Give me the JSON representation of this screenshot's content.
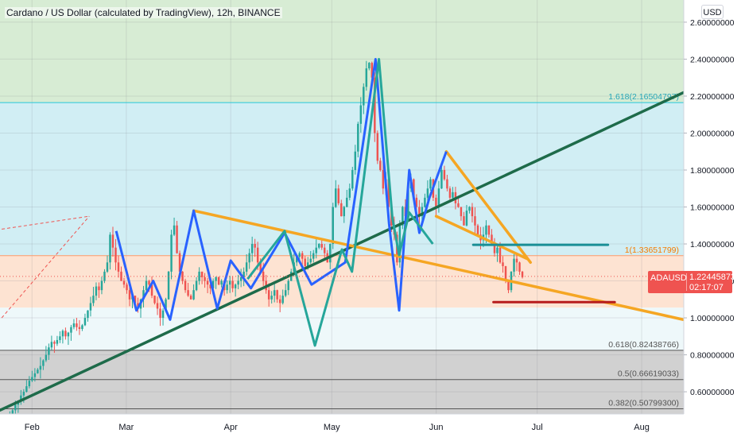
{
  "header": {
    "title": "Cardano / US Dollar (calculated by TradingView), 12h, BINANCE",
    "currency_label": "USD"
  },
  "price_tag": {
    "symbol": "ADAUSD",
    "price": "1.22445873",
    "countdown": "02:17:07"
  },
  "colors": {
    "candle_up": "#26a69a",
    "candle_down": "#ef5350",
    "trendline_green": "#1e6b4a",
    "trendline_orange": "#f5a623",
    "pattern_blue": "#2962ff",
    "pattern_teal": "#26a69a",
    "level_red": "#b71c1c",
    "level_teal": "#1a8f96",
    "zone_green": "#d7ecd4",
    "zone_cyan": "#d1eef4",
    "zone_peach": "#fde3d2",
    "zone_light": "#eef8fa",
    "zone_gray": "#d1d1d1"
  },
  "chart_data": {
    "type": "candlestick",
    "title": "Cardano / US Dollar (calculated by TradingView), 12h, BINANCE",
    "y_unit": "USD",
    "ylim": [
      0.48,
      2.72
    ],
    "y_ticks": [
      {
        "value": 2.6,
        "label": "2.60000000"
      },
      {
        "value": 2.4,
        "label": "2.40000000"
      },
      {
        "value": 2.2,
        "label": "2.20000000"
      },
      {
        "value": 2.0,
        "label": "2.00000000"
      },
      {
        "value": 1.8,
        "label": "1.80000000"
      },
      {
        "value": 1.6,
        "label": "1.60000000"
      },
      {
        "value": 1.4,
        "label": "1.40000000"
      },
      {
        "value": 1.2,
        "label": "1.20000000"
      },
      {
        "value": 1.0,
        "label": "1.00000000"
      },
      {
        "value": 0.8,
        "label": "0.80000000"
      },
      {
        "value": 0.6,
        "label": "0.60000000"
      }
    ],
    "x_ticks": [
      {
        "day": 1,
        "label": "Feb"
      },
      {
        "day": 29,
        "label": "Mar"
      },
      {
        "day": 60,
        "label": "Apr"
      },
      {
        "day": 90,
        "label": "May"
      },
      {
        "day": 121,
        "label": "Jun"
      },
      {
        "day": 151,
        "label": "Jul"
      },
      {
        "day": 182,
        "label": "Aug"
      }
    ],
    "xlim_days": [
      -8.5,
      194.5
    ],
    "fib_levels": [
      {
        "value": 2.16504797,
        "label": "1.618(2.16504797)"
      },
      {
        "value": 1.33651799,
        "label": "1(1.33651799)"
      },
      {
        "value": 0.82438766,
        "label": "0.618(0.82438766)"
      },
      {
        "value": 0.66619033,
        "label": "0.5(0.66619033)"
      },
      {
        "value": 0.507993,
        "label": "0.382(0.50799300)"
      }
    ],
    "zones": [
      {
        "from": 2.72,
        "to": 2.165,
        "color": "zone_green"
      },
      {
        "from": 2.165,
        "to": 1.337,
        "color": "zone_cyan"
      },
      {
        "from": 1.337,
        "to": 1.055,
        "color": "zone_peach"
      },
      {
        "from": 1.055,
        "to": 0.824,
        "color": "zone_light"
      },
      {
        "from": 0.824,
        "to": 0.48,
        "color": "zone_gray"
      }
    ],
    "trend_lines": [
      {
        "name": "green-support",
        "color": "trendline_green",
        "points": [
          [
            -8.5,
            0.5
          ],
          [
            194.5,
            2.22
          ]
        ]
      },
      {
        "name": "orange-upper",
        "color": "trendline_orange",
        "points": [
          [
            49,
            1.58
          ],
          [
            194.5,
            0.99
          ]
        ]
      },
      {
        "name": "orange-wedge-top",
        "color": "trendline_orange",
        "points": [
          [
            124,
            1.9
          ],
          [
            149,
            1.3
          ]
        ]
      },
      {
        "name": "orange-wedge-mid",
        "color": "trendline_orange",
        "points": [
          [
            121,
            1.55
          ],
          [
            148,
            1.32
          ]
        ]
      },
      {
        "name": "red-level",
        "color": "level_red",
        "points": [
          [
            138,
            1.085
          ],
          [
            174,
            1.085
          ]
        ]
      },
      {
        "name": "teal-level",
        "color": "level_teal",
        "points": [
          [
            132,
            1.395
          ],
          [
            172,
            1.395
          ]
        ]
      }
    ],
    "patterns": [
      {
        "name": "blue-zigzag",
        "color": "pattern_blue",
        "points": [
          [
            26,
            1.47
          ],
          [
            32,
            1.04
          ],
          [
            37,
            1.2
          ],
          [
            42,
            0.99
          ],
          [
            49,
            1.58
          ],
          [
            56,
            1.05
          ],
          [
            60,
            1.31
          ],
          [
            66,
            1.16
          ],
          [
            76,
            1.46
          ],
          [
            84,
            1.18
          ],
          [
            94,
            1.3
          ],
          [
            103,
            2.4
          ],
          [
            107,
            1.51
          ],
          [
            110,
            1.04
          ],
          [
            113,
            1.8
          ],
          [
            116,
            1.46
          ],
          [
            119,
            1.65
          ],
          [
            124,
            1.9
          ]
        ]
      },
      {
        "name": "teal-zigzag",
        "color": "pattern_teal",
        "points": [
          [
            65,
            1.21
          ],
          [
            76,
            1.47
          ],
          [
            85,
            0.85
          ],
          [
            93,
            1.37
          ],
          [
            96,
            1.25
          ],
          [
            104,
            2.4
          ],
          [
            108,
            1.54
          ],
          [
            110,
            1.34
          ],
          [
            113,
            1.57
          ],
          [
            120,
            1.4
          ]
        ]
      }
    ],
    "candles_note": "Approximate OHLC closes per 12h bar",
    "closes": [
      0.47,
      0.5,
      0.53,
      0.55,
      0.58,
      0.6,
      0.63,
      0.66,
      0.68,
      0.7,
      0.72,
      0.74,
      0.77,
      0.8,
      0.84,
      0.87,
      0.86,
      0.88,
      0.9,
      0.93,
      0.9,
      0.92,
      0.95,
      0.97,
      0.95,
      0.94,
      0.96,
      1.0,
      1.04,
      1.08,
      1.12,
      1.17,
      1.15,
      1.2,
      1.25,
      1.3,
      1.45,
      1.38,
      1.3,
      1.25,
      1.2,
      1.18,
      1.15,
      1.1,
      1.12,
      1.08,
      1.05,
      1.1,
      1.15,
      1.2,
      1.18,
      1.12,
      1.08,
      1.05,
      1.0,
      1.04,
      1.1,
      1.25,
      1.45,
      1.5,
      1.35,
      1.25,
      1.2,
      1.15,
      1.12,
      1.1,
      1.15,
      1.2,
      1.25,
      1.22,
      1.2,
      1.18,
      1.16,
      1.2,
      1.22,
      1.18,
      1.2,
      1.15,
      1.18,
      1.2,
      1.16,
      1.18,
      1.2,
      1.22,
      1.25,
      1.3,
      1.35,
      1.4,
      1.38,
      1.3,
      1.25,
      1.2,
      1.15,
      1.1,
      1.12,
      1.15,
      1.1,
      1.08,
      1.12,
      1.15,
      1.2,
      1.25,
      1.3,
      1.33,
      1.35,
      1.32,
      1.28,
      1.3,
      1.32,
      1.35,
      1.38,
      1.4,
      1.38,
      1.35,
      1.3,
      1.4,
      1.6,
      1.7,
      1.62,
      1.55,
      1.6,
      1.65,
      1.7,
      1.8,
      1.9,
      2.05,
      2.15,
      2.25,
      2.35,
      2.38,
      2.3,
      2.0,
      1.85,
      1.8,
      1.7,
      1.75,
      1.6,
      1.5,
      1.45,
      1.3,
      1.5,
      1.6,
      1.55,
      1.7,
      1.75,
      1.65,
      1.6,
      1.55,
      1.6,
      1.65,
      1.7,
      1.75,
      1.65,
      1.6,
      1.7,
      1.8,
      1.75,
      1.7,
      1.65,
      1.68,
      1.62,
      1.6,
      1.55,
      1.5,
      1.58,
      1.6,
      1.55,
      1.5,
      1.45,
      1.42,
      1.45,
      1.5,
      1.45,
      1.4,
      1.35,
      1.38,
      1.3,
      1.28,
      1.2,
      1.15,
      1.25,
      1.32,
      1.3,
      1.25,
      1.22
    ]
  }
}
